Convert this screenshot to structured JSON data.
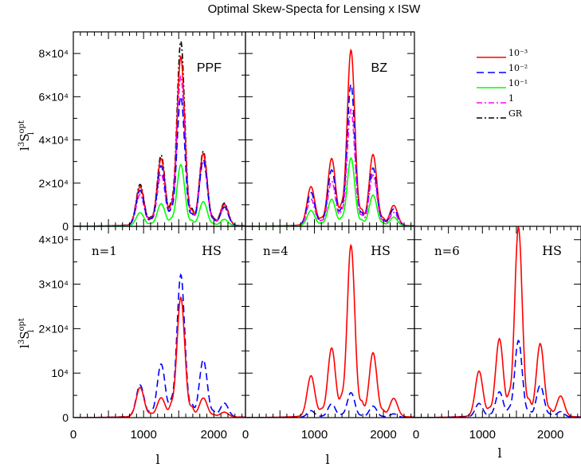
{
  "figure": {
    "title": "Optimal Skew-Specta for Lensing x ISW",
    "ylabel_base": "l",
    "ylabel_exp": "3",
    "ylabel_mid": "S",
    "ylabel_sup": "opt",
    "ylabel_sub": "l",
    "xlabel": "l"
  },
  "legend": {
    "entries": [
      {
        "label": "10⁻³",
        "color": "#ff0000",
        "dash": "solid"
      },
      {
        "label": "10⁻²",
        "color": "#0000ff",
        "dash": "dashed"
      },
      {
        "label": "10⁻¹",
        "color": "#00ff00",
        "dash": "solid"
      },
      {
        "label": "1",
        "color": "#ff00ff",
        "dash": "dashdot"
      },
      {
        "label": "GR",
        "color": "#000000",
        "dash": "dashdot"
      }
    ]
  },
  "chart_data": [
    {
      "type": "line",
      "panel": "top-left",
      "label": "PPF",
      "xlim": [
        0,
        2450
      ],
      "ylim": [
        0,
        90000
      ],
      "yticks": [
        0,
        20000,
        40000,
        60000,
        80000
      ],
      "ytick_labels": [
        "0",
        "2×10⁴",
        "4×10⁴",
        "6×10⁴",
        "8×10⁴"
      ],
      "peak_l": [
        950,
        1250,
        1530,
        1850,
        2150
      ],
      "series": [
        {
          "legend_index": 4,
          "peaks": [
            18500,
            31500,
            84000,
            33500,
            10000
          ]
        },
        {
          "legend_index": 0,
          "peaks": [
            17500,
            30000,
            77000,
            32500,
            9500
          ]
        },
        {
          "legend_index": 3,
          "peaks": [
            14000,
            23000,
            68000,
            29000,
            8000
          ]
        },
        {
          "legend_index": 1,
          "peaks": [
            16000,
            27000,
            59000,
            30000,
            8500
          ]
        },
        {
          "legend_index": 2,
          "peaks": [
            6000,
            10000,
            28000,
            11000,
            3000
          ]
        }
      ]
    },
    {
      "type": "line",
      "panel": "top-middle",
      "label": "BZ",
      "xlim": [
        0,
        2450
      ],
      "ylim": [
        0,
        90000
      ],
      "peak_l": [
        950,
        1250,
        1530,
        1850,
        2150
      ],
      "series": [
        {
          "legend_index": 0,
          "peaks": [
            17500,
            30000,
            80000,
            32000,
            9000
          ]
        },
        {
          "legend_index": 1,
          "peaks": [
            15000,
            25000,
            64500,
            26000,
            7500
          ]
        },
        {
          "legend_index": 3,
          "peaks": [
            12000,
            20000,
            53000,
            23000,
            6000
          ]
        },
        {
          "legend_index": 2,
          "peaks": [
            7000,
            12000,
            31000,
            14000,
            4000
          ]
        }
      ]
    },
    {
      "type": "line",
      "panel": "bottom-left",
      "label": "HS",
      "sublabel": "n=1",
      "xlim": [
        0,
        2450
      ],
      "ylim": [
        0,
        43000
      ],
      "yticks": [
        0,
        10000,
        20000,
        30000,
        40000
      ],
      "ytick_labels": [
        "0",
        "10⁴",
        "2×10⁴",
        "3×10⁴",
        "4×10⁴"
      ],
      "xticks": [
        0,
        1000,
        2000
      ],
      "xtick_labels": [
        "0",
        "1000",
        "2000"
      ],
      "peak_l": [
        950,
        1250,
        1530,
        1850,
        2150
      ],
      "series": [
        {
          "legend_index": 1,
          "peaks": [
            7000,
            11500,
            31500,
            12500,
            3000
          ]
        },
        {
          "legend_index": 0,
          "peaks": [
            6500,
            4000,
            26500,
            4000,
            1000
          ]
        }
      ]
    },
    {
      "type": "line",
      "panel": "bottom-middle",
      "label": "HS",
      "sublabel": "n=4",
      "xlim": [
        0,
        2450
      ],
      "ylim": [
        0,
        43000
      ],
      "xticks": [
        0,
        1000,
        2000
      ],
      "xtick_labels": [
        "0",
        "1000",
        "2000"
      ],
      "peak_l": [
        950,
        1250,
        1530,
        1850,
        2150
      ],
      "series": [
        {
          "legend_index": 0,
          "peaks": [
            9000,
            15000,
            38000,
            14000,
            4000
          ]
        },
        {
          "legend_index": 1,
          "peaks": [
            1500,
            3000,
            5500,
            2500,
            800
          ]
        }
      ]
    },
    {
      "type": "line",
      "panel": "bottom-right",
      "label": "HS",
      "sublabel": "n=6",
      "xlim": [
        0,
        2450
      ],
      "ylim": [
        0,
        43000
      ],
      "xticks": [
        0,
        1000,
        2000
      ],
      "xtick_labels": [
        "0",
        "1000",
        "2000"
      ],
      "peak_l": [
        950,
        1250,
        1530,
        1850,
        2150
      ],
      "series": [
        {
          "legend_index": 0,
          "peaks": [
            10000,
            17000,
            42000,
            16000,
            4500
          ]
        },
        {
          "legend_index": 1,
          "peaks": [
            3000,
            5500,
            17000,
            7000,
            1200
          ]
        }
      ]
    }
  ]
}
